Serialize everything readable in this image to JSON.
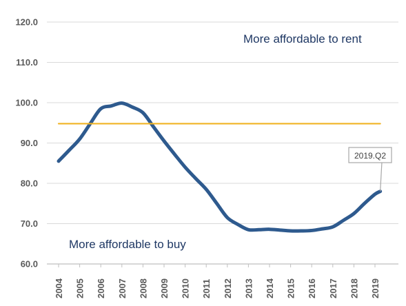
{
  "chart_data": {
    "type": "line",
    "title": "",
    "xlabel": "",
    "ylabel": "",
    "ylim": [
      60,
      120
    ],
    "yticks": [
      "60.0",
      "70.0",
      "80.0",
      "90.0",
      "100.0",
      "110.0",
      "120.0"
    ],
    "grid": "horizontal",
    "categories": [
      "2004",
      "2005",
      "2006",
      "2007",
      "2008",
      "2009",
      "2010",
      "2011",
      "2012",
      "2013",
      "2014",
      "2015",
      "2016",
      "2017",
      "2018",
      "2019"
    ],
    "series": [
      {
        "color": "#2e5a8e",
        "x": [
          2004.0,
          2004.5,
          2005.0,
          2005.5,
          2006.0,
          2006.5,
          2007.0,
          2007.5,
          2008.0,
          2008.5,
          2009.0,
          2009.5,
          2010.0,
          2010.5,
          2011.0,
          2011.5,
          2012.0,
          2012.5,
          2013.0,
          2013.5,
          2014.0,
          2014.5,
          2015.0,
          2015.5,
          2016.0,
          2016.5,
          2017.0,
          2017.5,
          2018.0,
          2018.5,
          2019.0,
          2019.25
        ],
        "y": [
          85.5,
          88.2,
          91.0,
          94.8,
          98.5,
          99.2,
          99.9,
          98.9,
          97.5,
          94.0,
          90.5,
          87.2,
          84.0,
          81.2,
          78.5,
          75.0,
          71.5,
          69.8,
          68.5,
          68.5,
          68.6,
          68.4,
          68.2,
          68.2,
          68.3,
          68.7,
          69.2,
          70.8,
          72.5,
          75.0,
          77.3,
          78.0
        ]
      },
      {
        "color": "#f0b323",
        "x": [
          2004.0,
          2019.25
        ],
        "y": [
          94.8,
          94.8
        ]
      }
    ],
    "annotations": {
      "rent": "More affordable to rent",
      "buy": "More affordable to buy",
      "callout": "2019.Q2"
    }
  }
}
